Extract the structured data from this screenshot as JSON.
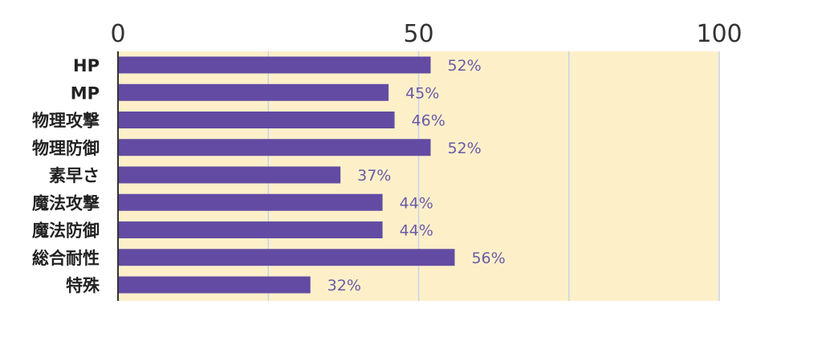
{
  "chart_data": {
    "type": "bar",
    "orientation": "horizontal",
    "categories": [
      "HP",
      "MP",
      "物理攻撃",
      "物理防御",
      "素早さ",
      "魔法攻撃",
      "魔法防御",
      "総合耐性",
      "特殊"
    ],
    "values": [
      52,
      45,
      46,
      52,
      37,
      44,
      44,
      56,
      32
    ],
    "data_labels": [
      "52%",
      "45%",
      "46%",
      "52%",
      "37%",
      "44%",
      "44%",
      "56%",
      "32%"
    ],
    "xlim": [
      0,
      100
    ],
    "x_ticks": [
      0,
      50,
      100
    ],
    "x_tick_labels": [
      "0",
      "50",
      "100"
    ],
    "x_axis_position": "top",
    "grid": true,
    "legend": "none",
    "colors": {
      "bar": "#634ba3",
      "plot_background": "#fdf0c9",
      "grid_line": "#c7d3e8",
      "axis_line": "#333333",
      "data_label": "#6a5aa8"
    }
  }
}
